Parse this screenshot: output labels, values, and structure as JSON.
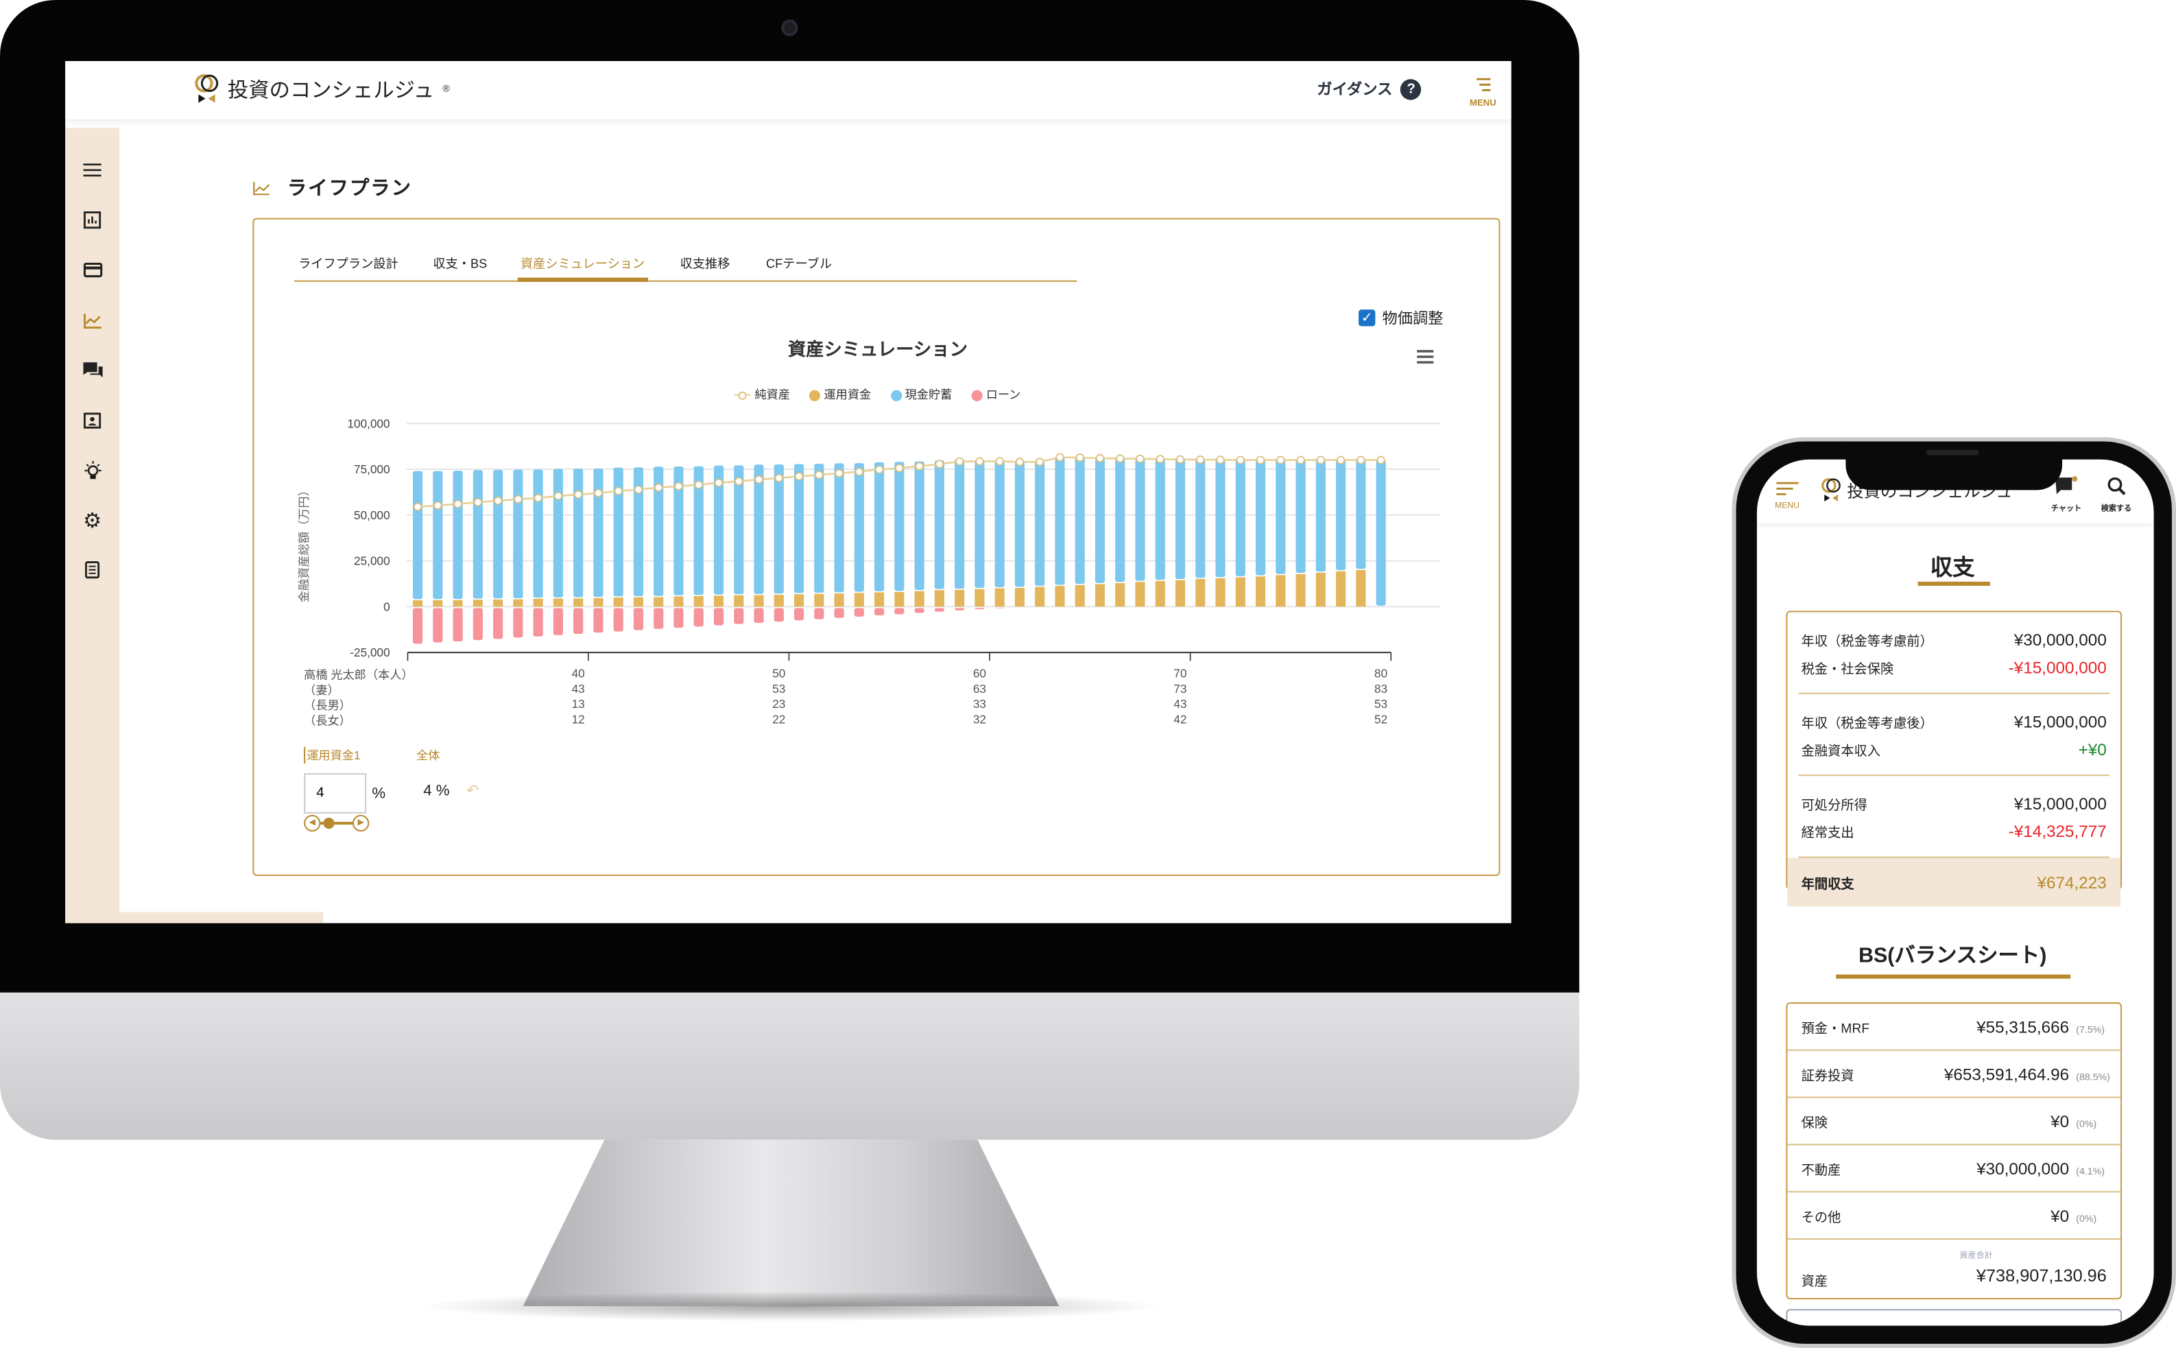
{
  "desktop": {
    "brand": "投資のコンシェルジュ",
    "brand_mark": "®",
    "guidance_label": "ガイダンス",
    "help_icon": "question-circle-icon",
    "menu_label": "MENU",
    "sidebar_icons": [
      "hamburger-icon",
      "bar-chart-icon",
      "credit-card-icon",
      "line-chart-icon",
      "chat-icon",
      "profile-card-icon",
      "lightbulb-icon",
      "gear-icon",
      "document-icon"
    ],
    "sidebar_active": "line-chart-icon",
    "page_title": "ライフプラン",
    "tabs": [
      "ライフプラン設計",
      "収支・BS",
      "資産シミュレーション",
      "収支推移",
      "CFテーブル"
    ],
    "active_tab": "資産シミュレーション",
    "inflation": {
      "label": "物価調整",
      "checked": true
    },
    "controls": {
      "subtab_1": "運用資金1",
      "subtab_2": "全体",
      "rate_input": "4",
      "unit": "%",
      "current_rate": "4 %",
      "slider_value": 4
    }
  },
  "chart_data": {
    "type": "bar",
    "stacked": true,
    "title": "資産シミュレーション",
    "ylabel": "金融資産総額（万円）",
    "ylim": [
      -25000,
      100000
    ],
    "yticks": [
      "100,000",
      "75,000",
      "50,000",
      "25,000",
      "0",
      "-25,000"
    ],
    "ytick_values": [
      100000,
      75000,
      50000,
      25000,
      0,
      -25000
    ],
    "grid": true,
    "legend_position": "top",
    "legend": [
      "純資産",
      "運用資金",
      "現金貯蓄",
      "ローン"
    ],
    "x": [
      32,
      33,
      34,
      35,
      36,
      37,
      38,
      39,
      40,
      41,
      42,
      43,
      44,
      45,
      46,
      47,
      48,
      49,
      50,
      51,
      52,
      53,
      54,
      55,
      56,
      57,
      58,
      59,
      60,
      61,
      62,
      63,
      64,
      65,
      66,
      67,
      68,
      69,
      70,
      71,
      72,
      73,
      74,
      75,
      76,
      77,
      78,
      79,
      80
    ],
    "series": [
      {
        "name": "運用資金",
        "type": "bar",
        "color": "#e3b65d",
        "values": [
          3500,
          3500,
          3600,
          3800,
          3900,
          4000,
          4300,
          4400,
          4500,
          4700,
          5000,
          5100,
          5200,
          5600,
          5800,
          6000,
          6200,
          6300,
          6500,
          6800,
          7000,
          7200,
          7500,
          7800,
          8000,
          8500,
          9000,
          9200,
          9600,
          10000,
          10200,
          10800,
          11300,
          11800,
          12300,
          12900,
          13500,
          14000,
          14500,
          15100,
          15500,
          16000,
          16500,
          17200,
          17800,
          18500,
          19300,
          20000,
          0
        ]
      },
      {
        "name": "現金貯蓄",
        "type": "bar",
        "color": "#7cc8ee",
        "values": [
          70500,
          70500,
          70600,
          70700,
          70700,
          70700,
          70500,
          70800,
          70800,
          70700,
          70900,
          70900,
          71200,
          70900,
          70800,
          71000,
          70900,
          71200,
          71100,
          71000,
          71000,
          71000,
          70800,
          71000,
          71000,
          70800,
          70800,
          71300,
          70400,
          69500,
          68800,
          68200,
          70200,
          69500,
          68700,
          67900,
          67200,
          66500,
          65800,
          65100,
          64600,
          64000,
          63500,
          62800,
          62200,
          61500,
          60700,
          60000,
          80000
        ]
      },
      {
        "name": "ローン",
        "type": "bar",
        "color": "#f7939a",
        "values": [
          -19500,
          -18800,
          -18200,
          -17500,
          -16800,
          -16100,
          -15500,
          -14800,
          -14100,
          -13400,
          -12800,
          -12100,
          -11400,
          -10800,
          -10100,
          -9400,
          -8700,
          -8100,
          -7400,
          -6700,
          -6100,
          -5400,
          -4700,
          -4000,
          -3400,
          -2700,
          -2000,
          -1300,
          -700,
          -200,
          0,
          0,
          0,
          0,
          0,
          0,
          0,
          0,
          0,
          0,
          0,
          0,
          0,
          0,
          0,
          0,
          0,
          0,
          0
        ]
      },
      {
        "name": "純資産",
        "type": "line",
        "color": "#e9cf94",
        "values": [
          54500,
          55200,
          56000,
          57000,
          57800,
          58600,
          59300,
          60400,
          61200,
          62000,
          63100,
          63900,
          65000,
          65700,
          66500,
          67600,
          68400,
          69400,
          70200,
          71100,
          71900,
          72800,
          73600,
          74800,
          75600,
          76600,
          77800,
          79200,
          79300,
          79300,
          79000,
          79000,
          81500,
          81300,
          81000,
          80800,
          80700,
          80500,
          80300,
          80200,
          80100,
          80000,
          80000,
          80000,
          80000,
          80000,
          80000,
          80000,
          80000
        ]
      }
    ],
    "age_table": [
      {
        "label": "高橋 光太郎（本人）",
        "values": [
          "40",
          "50",
          "60",
          "70",
          "80"
        ]
      },
      {
        "label": "（妻）",
        "values": [
          "43",
          "53",
          "63",
          "73",
          "83"
        ]
      },
      {
        "label": "（長男）",
        "values": [
          "13",
          "23",
          "33",
          "43",
          "53"
        ]
      },
      {
        "label": "（長女）",
        "values": [
          "12",
          "22",
          "32",
          "42",
          "52"
        ]
      }
    ],
    "age_tick_ages": [
      40,
      50,
      60,
      70,
      80
    ]
  },
  "phone": {
    "menu_label": "MENU",
    "brand": "投資のコンシェルジュ",
    "chat_label": "チャット",
    "search_label": "検索する",
    "income_title": "収支",
    "income_groups": [
      [
        {
          "label": "年収（税金等考慮前）",
          "value": "¥30,000,000",
          "tone": "normal"
        },
        {
          "label": "税金・社会保険",
          "value": "-¥15,000,000",
          "tone": "neg"
        }
      ],
      [
        {
          "label": "年収（税金等考慮後）",
          "value": "¥15,000,000",
          "tone": "normal"
        },
        {
          "label": "金融資本収入",
          "value": "+¥0",
          "tone": "pos"
        }
      ],
      [
        {
          "label": "可処分所得",
          "value": "¥15,000,000",
          "tone": "normal"
        },
        {
          "label": "経常支出",
          "value": "-¥14,325,777",
          "tone": "neg"
        }
      ]
    ],
    "annual_balance": {
      "label": "年間収支",
      "value": "¥674,223"
    },
    "bs_title": "BS(バランスシート)",
    "bs_rows": [
      {
        "label": "預金・MRF",
        "value": "¥55,315,666",
        "pct": "(7.5%)"
      },
      {
        "label": "証券投資",
        "value": "¥653,591,464.96",
        "pct": "(88.5%)"
      },
      {
        "label": "保険",
        "value": "¥0",
        "pct": "(0%)"
      },
      {
        "label": "不動産",
        "value": "¥30,000,000",
        "pct": "(4.1%)"
      },
      {
        "label": "その他",
        "value": "¥0",
        "pct": "(0%)"
      }
    ],
    "bs_total": {
      "caption": "資産合計",
      "label": "資産",
      "value": "¥738,907,130.96"
    }
  },
  "colors": {
    "accent": "#b8892e",
    "sidebar_bg": "#f3e6d6",
    "negative": "#e8242c",
    "positive": "#1a8a2a",
    "highlight_bg": "#f3e6d6"
  }
}
